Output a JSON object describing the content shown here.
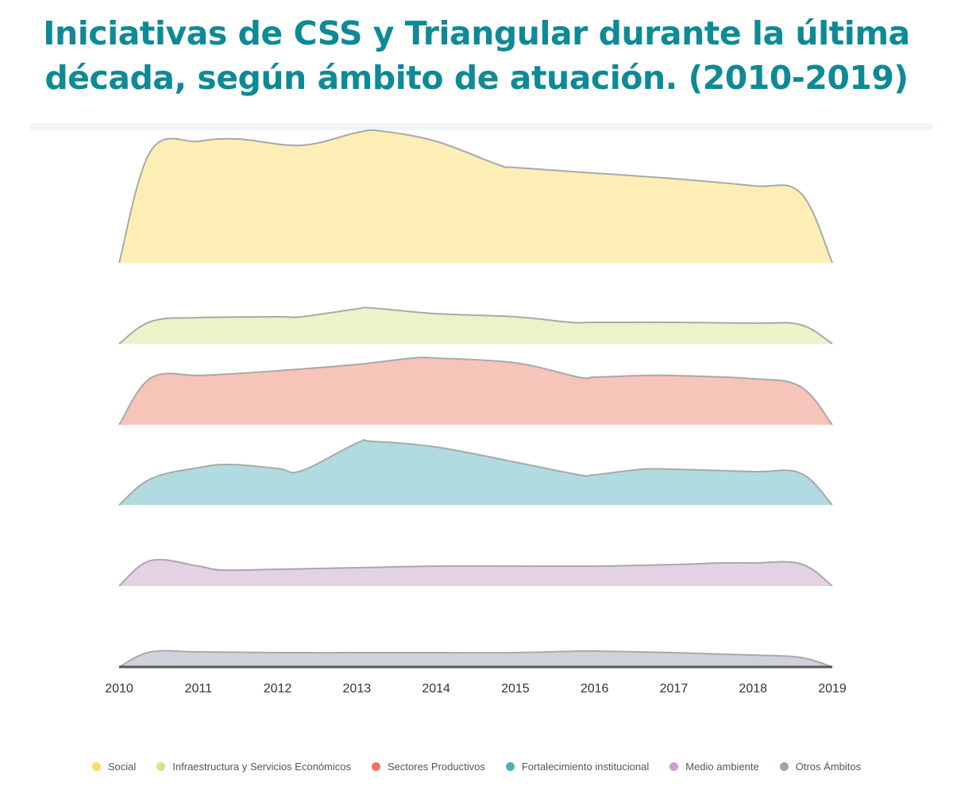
{
  "chart_data": {
    "type": "area",
    "subtype": "ridgeline",
    "title": "Iniciativas de CSS y Triangular durante la última década, según ámbito de atuación. (2010-2019)",
    "xlabel": "",
    "ylabel": "",
    "xlim": [
      2010,
      2019
    ],
    "x_ticks": [
      "2010",
      "2011",
      "2012",
      "2013",
      "2014",
      "2015",
      "2016",
      "2017",
      "2018",
      "2019"
    ],
    "grid": false,
    "legend_position": "bottom",
    "value_units": "relative (unlabeled)",
    "series": [
      {
        "name": "Social",
        "fill": "#fdeeb5",
        "color": "#fbd96a",
        "x": [
          2010,
          2010.4,
          2011,
          2011.5,
          2012.3,
          2013,
          2013.3,
          2014,
          2014.8,
          2015,
          2016,
          2017,
          2018,
          2018.6,
          2019
        ],
        "y": [
          0,
          141,
          153,
          156,
          148,
          164,
          166,
          153,
          123,
          120,
          113,
          106,
          97,
          88,
          0
        ]
      },
      {
        "name": "Infraestructura y Servicios Económicos",
        "fill": "#eef2c8",
        "color": "#d6e28a",
        "x": [
          2010,
          2010.4,
          2011,
          2012,
          2012.3,
          2013,
          2013.2,
          2014,
          2015,
          2015.7,
          2016,
          2017,
          2018,
          2018.6,
          2019
        ],
        "y": [
          0,
          28,
          33,
          34,
          34,
          44,
          45,
          38,
          34,
          27,
          27,
          27,
          26,
          24,
          0
        ]
      },
      {
        "name": "Sectores Productivos",
        "fill": "#f7c4b9",
        "color": "#ef7460",
        "x": [
          2010,
          2010.4,
          2011,
          2011.4,
          2012,
          2013,
          2013.7,
          2014,
          2015,
          2015.8,
          2016,
          2016.6,
          2017,
          2018,
          2018.6,
          2019
        ],
        "y": [
          0,
          59,
          62,
          64,
          68,
          76,
          84,
          84,
          78,
          60,
          60,
          62,
          62,
          58,
          48,
          0
        ]
      },
      {
        "name": "Fortalecimiento institucional",
        "fill": "#b0dbe0",
        "color": "#4ab0b8",
        "x": [
          2010,
          2010.4,
          2011,
          2011.4,
          2012,
          2012.3,
          2013,
          2013.2,
          2014,
          2015,
          2015.8,
          2016,
          2016.6,
          2017,
          2018,
          2018.6,
          2019
        ],
        "y": [
          0,
          33,
          47,
          51,
          46,
          43,
          78,
          80,
          73,
          54,
          38,
          38,
          45,
          45,
          42,
          40,
          0
        ]
      },
      {
        "name": "Medio ambiente",
        "fill": "#e3d1e4",
        "color": "#c9a0cd",
        "x": [
          2010,
          2010.4,
          2011,
          2011.3,
          2012,
          2013,
          2014,
          2015,
          2016,
          2017,
          2017.6,
          2018,
          2018.6,
          2019
        ],
        "y": [
          0,
          32,
          25,
          20,
          21,
          23,
          25,
          25,
          25,
          27,
          29,
          29,
          28,
          0
        ]
      },
      {
        "name": "Otros Ámbitos",
        "fill": "#cfd2db",
        "color": "#9ea3b4",
        "x": [
          2010,
          2010.4,
          2011,
          2012,
          2013,
          2014,
          2015,
          2015.8,
          2016,
          2017,
          2018,
          2018.6,
          2019
        ],
        "y": [
          0,
          19,
          19,
          18,
          18,
          18,
          18,
          20,
          20,
          18,
          15,
          12,
          0
        ]
      }
    ]
  }
}
